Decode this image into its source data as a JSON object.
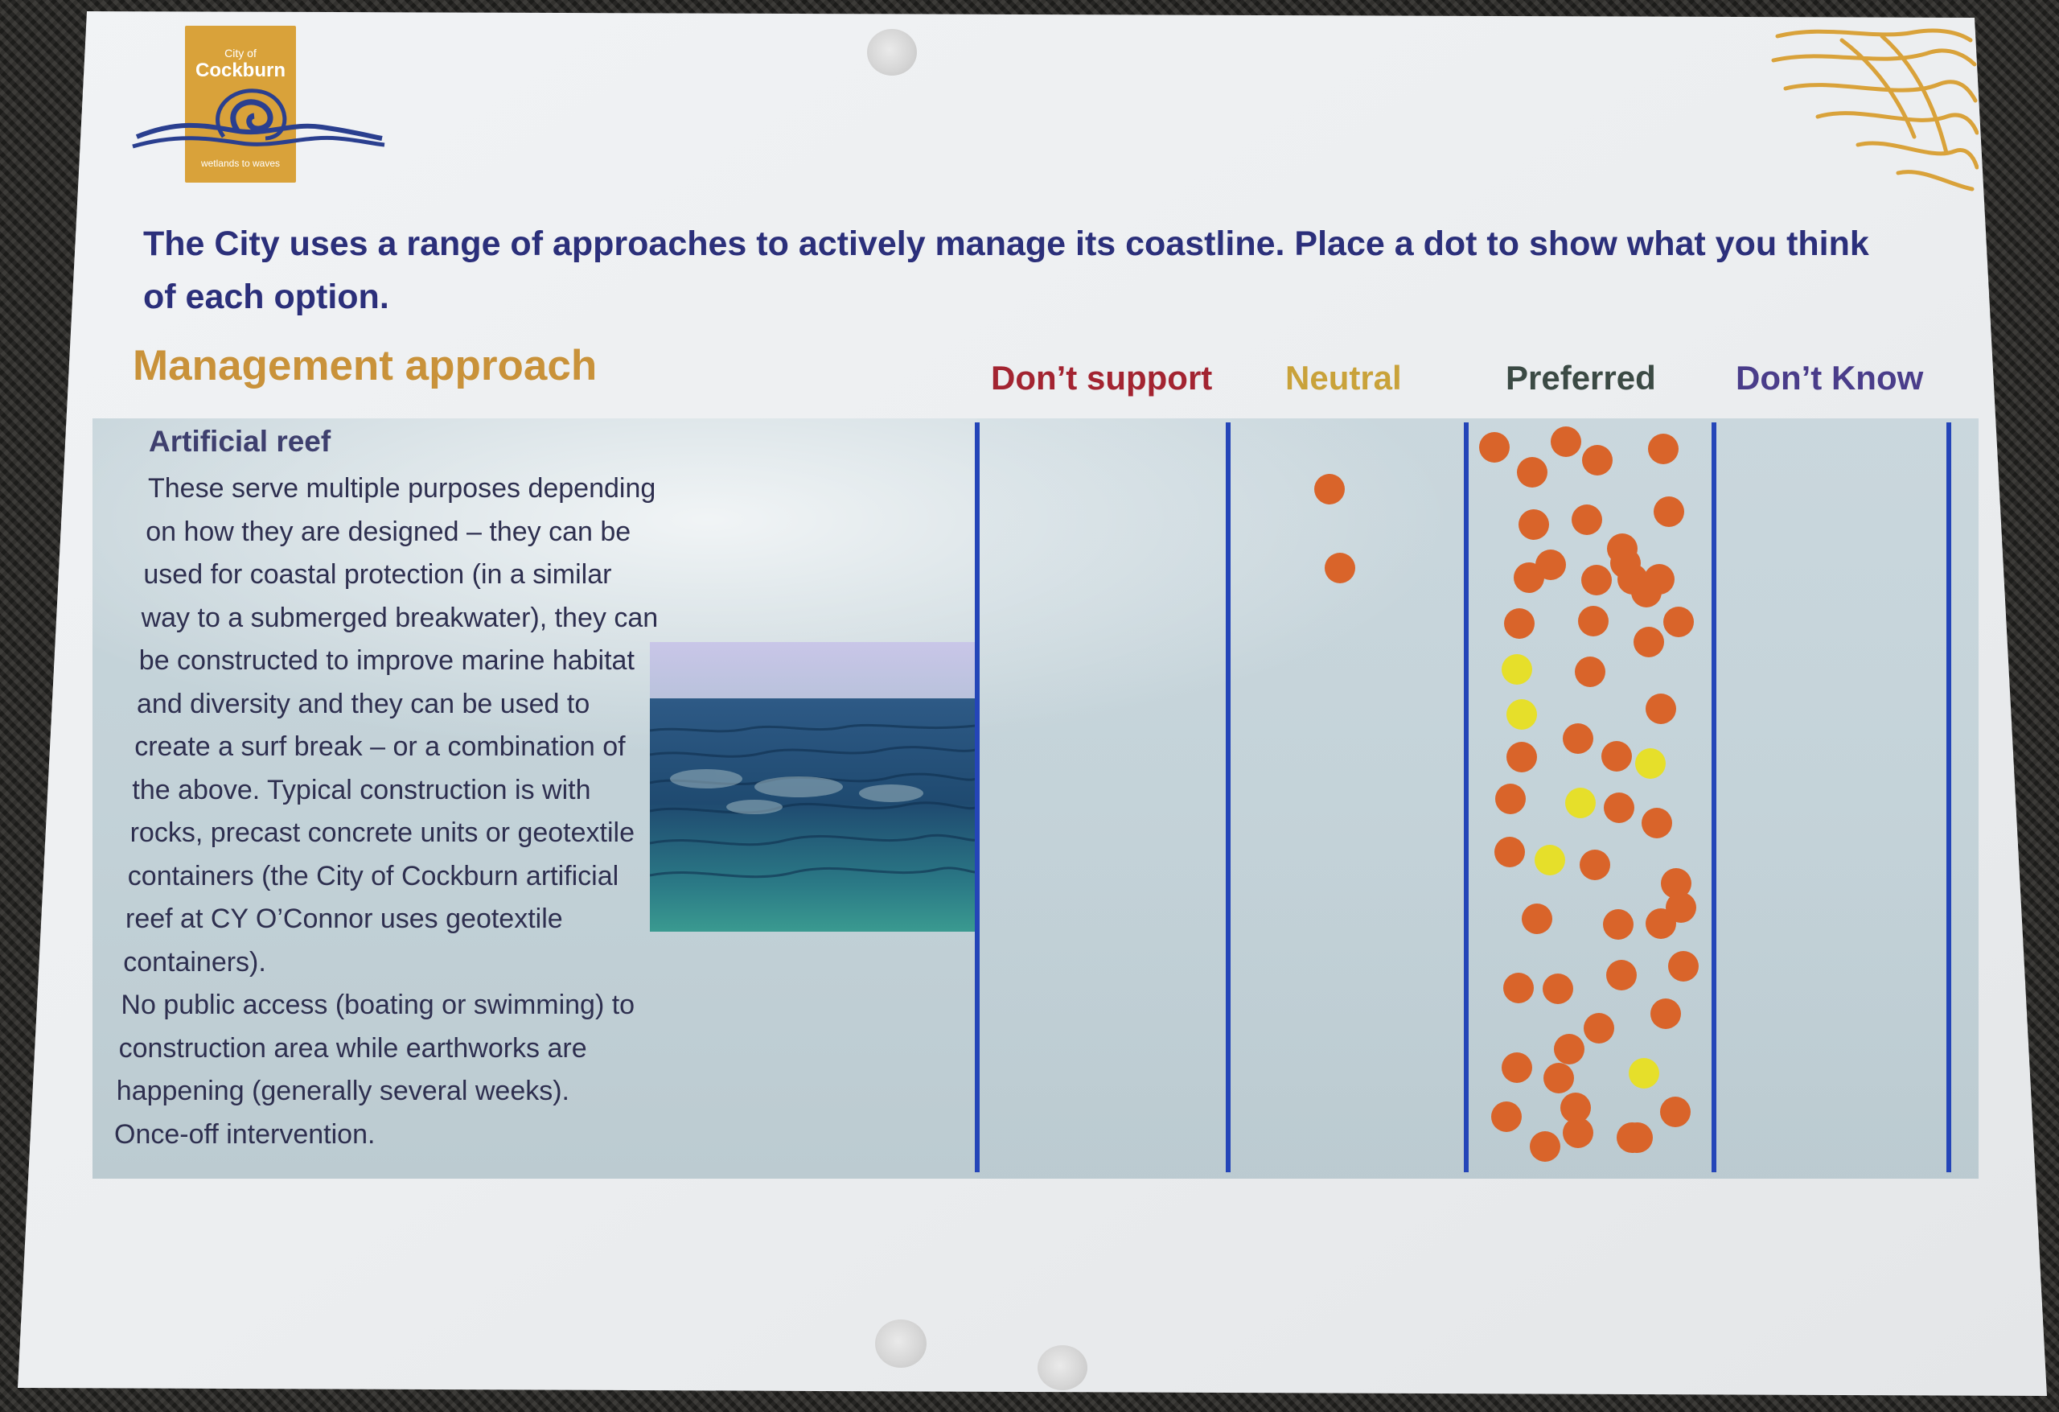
{
  "logo": {
    "line1": "City of",
    "line2": "Cockburn",
    "tagline": "wetlands to waves"
  },
  "intro_lines": [
    "The City uses a range of approaches to actively manage its coastline. Place a dot to show what you think",
    "of each option."
  ],
  "header": "Management approach",
  "columns": [
    {
      "label": "Don’t support",
      "color": "#a32431"
    },
    {
      "label": "Neutral",
      "color": "#c9a23a"
    },
    {
      "label": "Preferred",
      "color": "#3b4a44"
    },
    {
      "label": "Don’t Know",
      "color": "#4a3d8a"
    }
  ],
  "item": {
    "title": "Artificial reef",
    "description_lines": [
      "These serve multiple purposes depending",
      "on how they are designed – they can be",
      "used for coastal protection (in a similar",
      "way to a submerged breakwater), they can",
      "be constructed to improve marine habitat",
      "and diversity and they can be used to",
      "create a surf break – or a combination of",
      "the above. Typical construction is with",
      "rocks, precast concrete units or geotextile",
      "containers (the City of Cockburn artificial",
      "reef at CY O’Connor uses geotextile",
      "containers).",
      "No public access (boating or swimming) to",
      "construction area while earthworks are",
      "happening (generally several weeks).",
      "Once-off intervention."
    ]
  },
  "votes": {
    "dont_support": {
      "orange": 0,
      "yellow": 0
    },
    "neutral": {
      "orange": 2,
      "yellow": 0
    },
    "preferred": {
      "orange": 51,
      "yellow": 6
    },
    "dont_know": {
      "orange": 0,
      "yellow": 0
    }
  },
  "colors": {
    "brand_gold": "#d9a23a",
    "navy": "#2b2f7a",
    "divider_blue": "#2445b8",
    "dot_orange": "#d9642a",
    "dot_yellow": "#e6df2a"
  }
}
